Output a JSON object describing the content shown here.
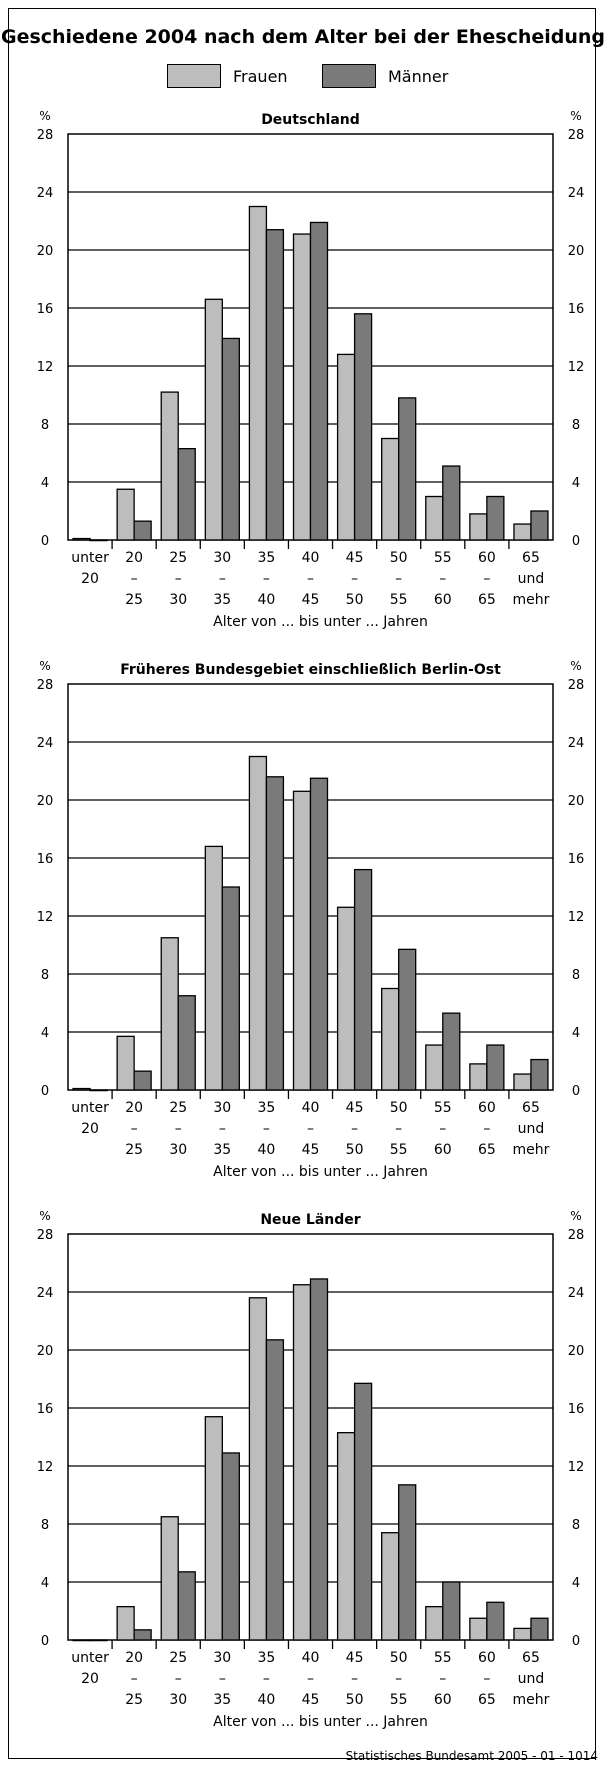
{
  "title": "Geschiedene 2004 nach dem Alter bei der Ehescheidung",
  "legend": {
    "frauen": "Frauen",
    "maenner": "Männer"
  },
  "colors": {
    "frauen": "#bdbdbd",
    "maenner": "#7a7a7a",
    "axis": "#000000"
  },
  "credit": "Statistisches Bundesamt 2005 - 01 - 1014",
  "chart_data": [
    {
      "type": "bar",
      "title": "Deutschland",
      "ylabel": "%",
      "xlabel": "Alter von ... bis unter ... Jahren",
      "ylim": [
        0,
        28
      ],
      "yticks": [
        "0",
        "4",
        "8",
        "12",
        "16",
        "20",
        "24",
        "28"
      ],
      "categories": [
        [
          "unter",
          "20"
        ],
        [
          "20",
          "–",
          "25"
        ],
        [
          "25",
          "–",
          "30"
        ],
        [
          "30",
          "–",
          "35"
        ],
        [
          "35",
          "–",
          "40"
        ],
        [
          "40",
          "–",
          "45"
        ],
        [
          "45",
          "–",
          "50"
        ],
        [
          "50",
          "–",
          "55"
        ],
        [
          "55",
          "–",
          "60"
        ],
        [
          "60",
          "–",
          "65"
        ],
        [
          "65",
          "und",
          "mehr"
        ]
      ],
      "series": [
        {
          "name": "Frauen",
          "values": [
            0.1,
            3.5,
            10.2,
            16.6,
            23.0,
            21.1,
            12.8,
            7.0,
            3.0,
            1.8,
            1.1
          ]
        },
        {
          "name": "Männer",
          "values": [
            0.0,
            1.3,
            6.3,
            13.9,
            21.4,
            21.9,
            15.6,
            9.8,
            5.1,
            3.0,
            2.0
          ]
        }
      ],
      "grid": true
    },
    {
      "type": "bar",
      "title": "Früheres Bundesgebiet einschließlich Berlin-Ost",
      "ylabel": "%",
      "xlabel": "Alter von ... bis unter ... Jahren",
      "ylim": [
        0,
        28
      ],
      "yticks": [
        "0",
        "4",
        "8",
        "12",
        "16",
        "20",
        "24",
        "28"
      ],
      "categories": [
        [
          "unter",
          "20"
        ],
        [
          "20",
          "–",
          "25"
        ],
        [
          "25",
          "–",
          "30"
        ],
        [
          "30",
          "–",
          "35"
        ],
        [
          "35",
          "–",
          "40"
        ],
        [
          "40",
          "–",
          "45"
        ],
        [
          "45",
          "–",
          "50"
        ],
        [
          "50",
          "–",
          "55"
        ],
        [
          "55",
          "–",
          "60"
        ],
        [
          "60",
          "–",
          "65"
        ],
        [
          "65",
          "und",
          "mehr"
        ]
      ],
      "series": [
        {
          "name": "Frauen",
          "values": [
            0.1,
            3.7,
            10.5,
            16.8,
            23.0,
            20.6,
            12.6,
            7.0,
            3.1,
            1.8,
            1.1
          ]
        },
        {
          "name": "Männer",
          "values": [
            0.0,
            1.3,
            6.5,
            14.0,
            21.6,
            21.5,
            15.2,
            9.7,
            5.3,
            3.1,
            2.1
          ]
        }
      ],
      "grid": true
    },
    {
      "type": "bar",
      "title": "Neue Länder",
      "ylabel": "%",
      "xlabel": "Alter von ... bis unter ... Jahren",
      "ylim": [
        0,
        28
      ],
      "yticks": [
        "0",
        "4",
        "8",
        "12",
        "16",
        "20",
        "24",
        "28"
      ],
      "categories": [
        [
          "unter",
          "20"
        ],
        [
          "20",
          "–",
          "25"
        ],
        [
          "25",
          "–",
          "30"
        ],
        [
          "30",
          "–",
          "35"
        ],
        [
          "35",
          "–",
          "40"
        ],
        [
          "40",
          "–",
          "45"
        ],
        [
          "45",
          "–",
          "50"
        ],
        [
          "50",
          "–",
          "55"
        ],
        [
          "55",
          "–",
          "60"
        ],
        [
          "60",
          "–",
          "65"
        ],
        [
          "65",
          "und",
          "mehr"
        ]
      ],
      "series": [
        {
          "name": "Frauen",
          "values": [
            0.0,
            2.3,
            8.5,
            15.4,
            23.6,
            24.5,
            14.3,
            7.4,
            2.3,
            1.5,
            0.8
          ]
        },
        {
          "name": "Männer",
          "values": [
            0.0,
            0.7,
            4.7,
            12.9,
            20.7,
            24.9,
            17.7,
            10.7,
            4.0,
            2.6,
            1.5
          ]
        }
      ],
      "grid": true
    }
  ]
}
